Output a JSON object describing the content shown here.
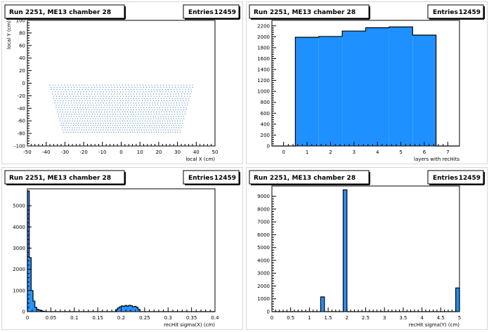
{
  "panels": [
    {
      "title": "Run 2251, ME13 chamber 28",
      "stats_label": "Entries",
      "stats_value": "12459"
    },
    {
      "title": "Run 2251, ME13 chamber 28",
      "stats_label": "Entries",
      "stats_value": "12459"
    },
    {
      "title": "Run 2251, ME13 chamber 28",
      "stats_label": "Entries",
      "stats_value": "12459"
    },
    {
      "title": "Run 2251, ME13 chamber 28",
      "stats_label": "Entries",
      "stats_value": "12459"
    }
  ],
  "colors": {
    "fill": "#1e90ff",
    "marker": "#1f6fe0",
    "axis": "#000000"
  },
  "chart_data": [
    {
      "type": "scatter",
      "title": "Run 2251, ME13 chamber 28",
      "xlabel": "local X (cm)",
      "ylabel": "local Y (cm)",
      "xlim": [
        -50,
        50
      ],
      "ylim": [
        -100,
        100
      ],
      "xticks": [
        -50,
        -40,
        -30,
        -20,
        -10,
        0,
        10,
        20,
        30,
        40,
        50
      ],
      "yticks": [
        -100,
        -80,
        -60,
        -40,
        -20,
        0,
        20,
        40,
        60,
        80,
        100
      ],
      "stats": {
        "Entries": 12459
      },
      "region": {
        "y_range": [
          -78,
          -3
        ],
        "x_half_width_top": 38,
        "x_half_width_bottom": 31,
        "rows": 22,
        "cols": 50
      }
    },
    {
      "type": "bar",
      "title": "Run 2251, ME13 chamber 28",
      "xlabel": "layers with recHits",
      "ylabel": "",
      "xlim": [
        -0.5,
        7.5
      ],
      "ylim": [
        0,
        2300
      ],
      "xticks": [
        0,
        1,
        2,
        3,
        4,
        5,
        6,
        7
      ],
      "yticks": [
        0,
        200,
        400,
        600,
        800,
        1000,
        1200,
        1400,
        1600,
        1800,
        2000,
        2200
      ],
      "stats": {
        "Entries": 12459
      },
      "bin_edges": [
        -0.5,
        0.5,
        1.5,
        2.5,
        3.5,
        4.5,
        5.5,
        6.5,
        7.5
      ],
      "values": [
        0,
        1990,
        2005,
        2105,
        2165,
        2180,
        2030,
        0
      ]
    },
    {
      "type": "bar",
      "title": "Run 2251, ME13 chamber 28",
      "xlabel": "recHit sigma(X) (cm)",
      "ylabel": "",
      "xlim": [
        0,
        0.4
      ],
      "ylim": [
        0,
        5800
      ],
      "xticks": [
        0,
        0.05,
        0.1,
        0.15,
        0.2,
        0.25,
        0.3,
        0.35,
        0.4
      ],
      "xtick_labels": [
        "0",
        "0.05",
        "0.1",
        "0.15",
        "0.2",
        "0.25",
        "0.3",
        "0.35",
        "0.4"
      ],
      "yticks": [
        0,
        1000,
        2000,
        3000,
        4000,
        5000
      ],
      "stats": {
        "Entries": 12459
      },
      "bin_width": 0.004,
      "values": [
        5700,
        2550,
        1000,
        500,
        200,
        110,
        70,
        40,
        20,
        10,
        0,
        0,
        0,
        0,
        0,
        0,
        0,
        0,
        0,
        0,
        0,
        0,
        0,
        0,
        0,
        0,
        0,
        0,
        0,
        0,
        0,
        0,
        0,
        0,
        0,
        0,
        0,
        0,
        0,
        0,
        0,
        0,
        0,
        0,
        0,
        0,
        0,
        90,
        170,
        230,
        270,
        250,
        290,
        260,
        300,
        280,
        230,
        250,
        200,
        110,
        0,
        0,
        0,
        0,
        0,
        0,
        0,
        0,
        0,
        0,
        0,
        0,
        0,
        0,
        0,
        0,
        0,
        0,
        0,
        0,
        0,
        0,
        0,
        0,
        0,
        0,
        0,
        0,
        0,
        0,
        0,
        0,
        0,
        0,
        0,
        0,
        0,
        0,
        0,
        0
      ]
    },
    {
      "type": "bar",
      "title": "Run 2251, ME13 chamber 28",
      "xlabel": "recHit sigma(Y) (cm)",
      "ylabel": "",
      "xlim": [
        0,
        5
      ],
      "ylim": [
        0,
        9800
      ],
      "xticks": [
        0,
        0.5,
        1,
        1.5,
        2,
        2.5,
        3,
        3.5,
        4,
        4.5,
        5
      ],
      "xtick_labels": [
        "0",
        "0.5",
        "1",
        "1.5",
        "2",
        "2.5",
        "3",
        "3.5",
        "4",
        "4.5",
        "5"
      ],
      "yticks": [
        0,
        1000,
        2000,
        3000,
        4000,
        5000,
        6000,
        7000,
        8000,
        9000
      ],
      "stats": {
        "Entries": 12459
      },
      "bin_width": 0.1,
      "values": [
        0,
        0,
        0,
        0,
        0,
        0,
        0,
        0,
        0,
        0,
        0,
        0,
        0,
        1150,
        0,
        0,
        0,
        0,
        0,
        9500,
        0,
        0,
        0,
        0,
        0,
        0,
        0,
        0,
        0,
        0,
        0,
        0,
        0,
        0,
        0,
        0,
        0,
        0,
        0,
        0,
        0,
        0,
        0,
        0,
        0,
        0,
        0,
        0,
        0,
        1850
      ]
    }
  ]
}
